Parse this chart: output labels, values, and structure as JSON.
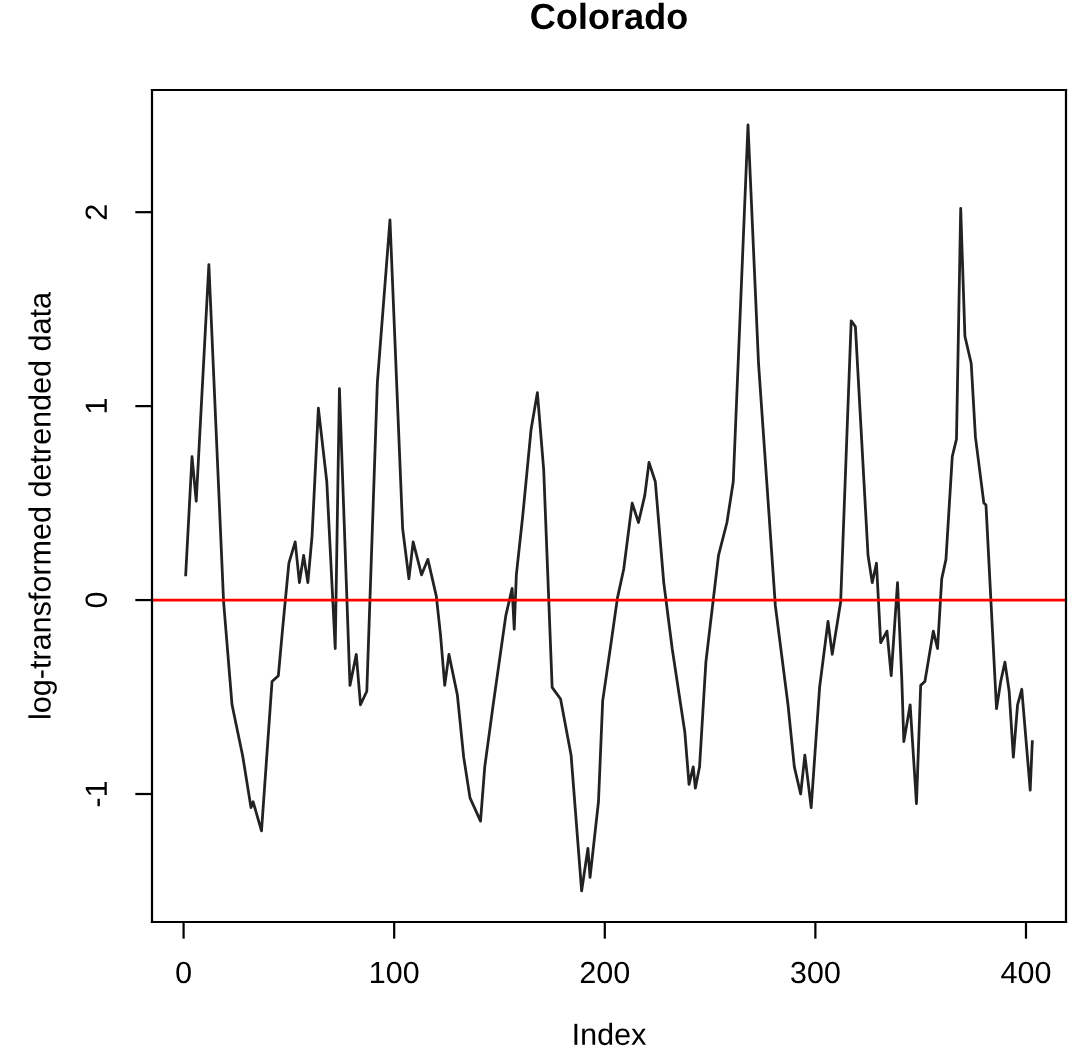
{
  "chart_data": {
    "type": "line",
    "title": "Colorado",
    "xlabel": "Index",
    "ylabel": "log-transformed detrended data",
    "xlim": [
      -15,
      419
    ],
    "ylim": [
      -1.66,
      2.63
    ],
    "xticks": [
      0,
      100,
      200,
      300,
      400
    ],
    "yticks": [
      -1,
      0,
      1,
      2
    ],
    "grid": false,
    "legend": false,
    "marker": "none",
    "line_style": "solid",
    "ref_lines": [
      {
        "axis": "y",
        "value": 0,
        "color": "#ff0000"
      }
    ],
    "series": [
      {
        "color": "#222222",
        "x": [
          1,
          4,
          6,
          12,
          19,
          23,
          28,
          32,
          33,
          37,
          42,
          45,
          47,
          50,
          53,
          55,
          57,
          59,
          61,
          64,
          68,
          72,
          74,
          79,
          82,
          84,
          87,
          92,
          98,
          104,
          107,
          109,
          113,
          116,
          120,
          122,
          124,
          126,
          130,
          133,
          136,
          141,
          143,
          147,
          153,
          156,
          157,
          158,
          161,
          165,
          168,
          171,
          175,
          179,
          184,
          189,
          192,
          193,
          197,
          199,
          203,
          206,
          209,
          213,
          216,
          219,
          221,
          224,
          228,
          232,
          238,
          240,
          242,
          243,
          245,
          248,
          254,
          258,
          261,
          268,
          273,
          281,
          287,
          290,
          293,
          295,
          298,
          302,
          306,
          308,
          312,
          317,
          319,
          325,
          327,
          329,
          331,
          334,
          336,
          339,
          341,
          342,
          345,
          348,
          350,
          352,
          356,
          358,
          360,
          362,
          365,
          367,
          369,
          371,
          374,
          376,
          380,
          381,
          386,
          388,
          390,
          392,
          394,
          396,
          398,
          402,
          403
        ],
        "values": [
          0.13,
          0.74,
          0.51,
          1.73,
          -0.01,
          -0.54,
          -0.8,
          -1.07,
          -1.04,
          -1.19,
          -0.42,
          -0.39,
          -0.15,
          0.19,
          0.3,
          0.09,
          0.23,
          0.09,
          0.33,
          0.99,
          0.61,
          -0.25,
          1.09,
          -0.44,
          -0.28,
          -0.54,
          -0.47,
          1.12,
          1.96,
          0.37,
          0.11,
          0.3,
          0.13,
          0.21,
          0.02,
          -0.18,
          -0.44,
          -0.28,
          -0.49,
          -0.81,
          -1.02,
          -1.14,
          -0.86,
          -0.54,
          -0.08,
          0.06,
          -0.15,
          0.13,
          0.43,
          0.88,
          1.07,
          0.67,
          -0.45,
          -0.51,
          -0.8,
          -1.5,
          -1.28,
          -1.43,
          -1.04,
          -0.52,
          -0.22,
          0.01,
          0.16,
          0.5,
          0.4,
          0.54,
          0.71,
          0.61,
          0.09,
          -0.25,
          -0.68,
          -0.95,
          -0.86,
          -0.97,
          -0.86,
          -0.32,
          0.23,
          0.4,
          0.61,
          2.45,
          1.22,
          -0.03,
          -0.54,
          -0.86,
          -1.0,
          -0.8,
          -1.07,
          -0.45,
          -0.11,
          -0.28,
          -0.01,
          1.44,
          1.41,
          0.23,
          0.09,
          0.19,
          -0.22,
          -0.16,
          -0.39,
          0.09,
          -0.4,
          -0.73,
          -0.54,
          -1.05,
          -0.44,
          -0.42,
          -0.16,
          -0.25,
          0.11,
          0.21,
          0.74,
          0.83,
          2.02,
          1.36,
          1.22,
          0.84,
          0.5,
          0.49,
          -0.56,
          -0.42,
          -0.32,
          -0.47,
          -0.81,
          -0.54,
          -0.46,
          -0.98,
          -0.73
        ]
      }
    ]
  }
}
